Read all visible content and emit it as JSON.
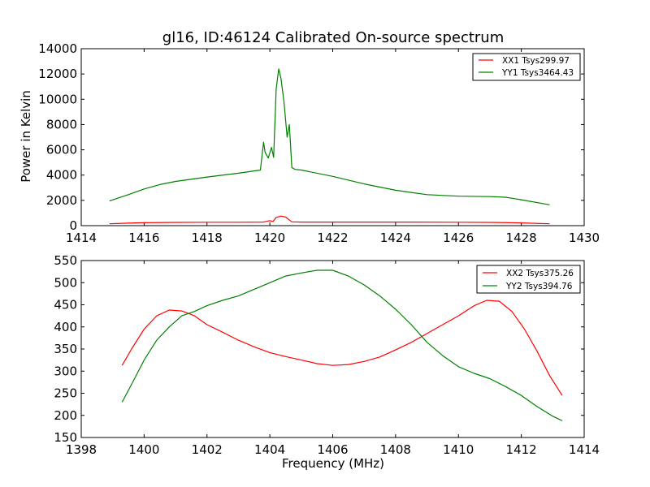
{
  "chart_data": [
    {
      "type": "line",
      "title": "gl16, ID:46124 Calibrated On-source spectrum",
      "xlabel": "",
      "ylabel": "Power in Kelvin",
      "xlim": [
        1414,
        1430
      ],
      "ylim": [
        0,
        14000
      ],
      "xticks": [
        "1414",
        "1416",
        "1418",
        "1420",
        "1422",
        "1424",
        "1426",
        "1428",
        "1430"
      ],
      "yticks": [
        "0",
        "2000",
        "4000",
        "6000",
        "8000",
        "10000",
        "12000",
        "14000"
      ],
      "legend_position": "top-right",
      "series": [
        {
          "name": "XX1 Tsys299.97",
          "color": "#ff0000",
          "x": [
            1414.9,
            1415.5,
            1416.0,
            1417.0,
            1418.0,
            1419.0,
            1419.8,
            1420.0,
            1420.1,
            1420.2,
            1420.35,
            1420.5,
            1420.7,
            1421.0,
            1422.0,
            1424.0,
            1426.0,
            1427.0,
            1428.0,
            1428.9
          ],
          "y": [
            150,
            200,
            230,
            260,
            270,
            270,
            280,
            400,
            330,
            650,
            760,
            680,
            300,
            280,
            280,
            280,
            270,
            260,
            220,
            150
          ]
        },
        {
          "name": "YY1 Tsys3464.43",
          "color": "#008000",
          "x": [
            1414.9,
            1415.5,
            1416.0,
            1416.5,
            1417.0,
            1418.0,
            1419.0,
            1419.7,
            1419.8,
            1419.85,
            1419.95,
            1420.05,
            1420.12,
            1420.2,
            1420.28,
            1420.35,
            1420.45,
            1420.55,
            1420.62,
            1420.7,
            1420.8,
            1421.0,
            1422.0,
            1423.0,
            1424.0,
            1425.0,
            1426.0,
            1427.0,
            1427.5,
            1428.0,
            1428.9
          ],
          "y": [
            1950,
            2450,
            2900,
            3250,
            3500,
            3850,
            4150,
            4400,
            6600,
            5800,
            5350,
            6200,
            5400,
            10800,
            12400,
            11700,
            9800,
            7000,
            8000,
            4600,
            4450,
            4400,
            3900,
            3300,
            2800,
            2450,
            2330,
            2300,
            2250,
            2050,
            1650
          ]
        }
      ]
    },
    {
      "type": "line",
      "title": "",
      "xlabel": "Frequency (MHz)",
      "ylabel": "",
      "xlim": [
        1398,
        1414
      ],
      "ylim": [
        150,
        550
      ],
      "xticks": [
        "1398",
        "1400",
        "1402",
        "1404",
        "1406",
        "1408",
        "1410",
        "1412",
        "1414"
      ],
      "yticks": [
        "150",
        "200",
        "250",
        "300",
        "350",
        "400",
        "450",
        "500",
        "550"
      ],
      "legend_position": "top-right",
      "series": [
        {
          "name": "XX2 Tsys375.26",
          "color": "#ff0000",
          "x": [
            1399.3,
            1399.6,
            1400.0,
            1400.4,
            1400.8,
            1401.2,
            1401.6,
            1402.0,
            1402.5,
            1403.0,
            1403.5,
            1404.0,
            1404.5,
            1405.0,
            1405.5,
            1406.0,
            1406.5,
            1407.0,
            1407.5,
            1408.0,
            1408.5,
            1409.0,
            1409.5,
            1410.0,
            1410.5,
            1410.9,
            1411.3,
            1411.7,
            1412.1,
            1412.5,
            1412.9,
            1413.3
          ],
          "y": [
            313,
            350,
            395,
            425,
            438,
            436,
            425,
            405,
            388,
            370,
            355,
            342,
            333,
            325,
            317,
            313,
            315,
            322,
            332,
            348,
            365,
            385,
            405,
            425,
            448,
            460,
            458,
            435,
            395,
            345,
            290,
            245
          ]
        },
        {
          "name": "YY2 Tsys394.76",
          "color": "#008000",
          "x": [
            1399.3,
            1399.6,
            1400.0,
            1400.4,
            1400.8,
            1401.2,
            1401.6,
            1402.0,
            1402.5,
            1403.0,
            1403.5,
            1404.0,
            1404.5,
            1405.0,
            1405.5,
            1406.0,
            1406.5,
            1407.0,
            1407.5,
            1408.0,
            1408.5,
            1409.0,
            1409.5,
            1410.0,
            1410.5,
            1411.0,
            1411.5,
            1412.0,
            1412.5,
            1413.0,
            1413.3
          ],
          "y": [
            230,
            270,
            325,
            370,
            400,
            425,
            435,
            448,
            460,
            470,
            485,
            500,
            515,
            522,
            528,
            528,
            515,
            495,
            470,
            440,
            405,
            365,
            335,
            310,
            295,
            283,
            265,
            245,
            220,
            198,
            188
          ]
        }
      ]
    }
  ]
}
